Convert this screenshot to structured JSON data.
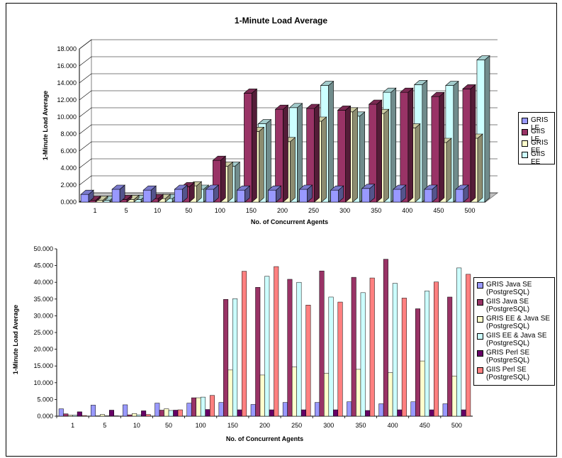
{
  "chart_data": [
    {
      "type": "bar",
      "title": "1-Minute Load Average",
      "xlabel": "No. of Concurrent Agents",
      "ylabel": "1-Minute Load Average",
      "ylim": [
        0,
        18
      ],
      "yticks": [
        "0.000",
        "2.000",
        "4.000",
        "6.000",
        "8.000",
        "10.000",
        "12.000",
        "14.000",
        "16.000",
        "18.000"
      ],
      "categories": [
        "1",
        "5",
        "10",
        "50",
        "100",
        "150",
        "200",
        "250",
        "300",
        "350",
        "400",
        "450",
        "500"
      ],
      "series": [
        {
          "name": "GRIS LE",
          "color": "#9999ff",
          "values": [
            0.9,
            1.5,
            1.4,
            1.5,
            1.5,
            1.4,
            1.4,
            1.5,
            1.4,
            1.6,
            1.5,
            1.5,
            1.5
          ]
        },
        {
          "name": "GIIS LE",
          "color": "#993366",
          "values": [
            0.2,
            0.3,
            0.4,
            1.8,
            4.9,
            12.8,
            10.9,
            11.0,
            10.8,
            11.5,
            12.9,
            12.4,
            13.3
          ]
        },
        {
          "name": "GRIS EE",
          "color": "#ffffcc",
          "values": [
            0.2,
            0.3,
            0.4,
            1.9,
            4.2,
            8.3,
            7.1,
            9.5,
            10.6,
            10.4,
            8.7,
            7.0,
            7.5
          ]
        },
        {
          "name": "GIIS EE",
          "color": "#ccffff",
          "values": [
            0.2,
            0.3,
            0.4,
            1.5,
            4.2,
            9.2,
            11.1,
            13.7,
            10.1,
            12.9,
            13.8,
            13.7,
            16.7
          ]
        }
      ],
      "legend_position": "right",
      "view": "3d"
    },
    {
      "type": "bar",
      "title": "",
      "xlabel": "No. of Concurrent Agents",
      "ylabel": "1-Minute Load Average",
      "ylim": [
        0,
        50
      ],
      "yticks": [
        "0.000",
        "5.000",
        "10.000",
        "15.000",
        "20.000",
        "25.000",
        "30.000",
        "35.000",
        "40.000",
        "45.000",
        "50.000"
      ],
      "categories": [
        "1",
        "5",
        "10",
        "50",
        "100",
        "150",
        "200",
        "250",
        "300",
        "350",
        "400",
        "450",
        "500"
      ],
      "series": [
        {
          "name": "GRIS Java SE\n(PostgreSQL)",
          "color": "#9999ff",
          "values": [
            2.2,
            3.3,
            3.4,
            3.9,
            3.9,
            4.1,
            3.5,
            4.1,
            4.1,
            4.3,
            3.7,
            4.3,
            3.7
          ]
        },
        {
          "name": "GIIS Java SE\n(PostgreSQL)",
          "color": "#993366",
          "values": [
            0.7,
            0.1,
            0.4,
            1.8,
            5.5,
            34.9,
            38.5,
            40.9,
            43.4,
            41.5,
            46.9,
            32.1,
            35.6
          ]
        },
        {
          "name": "GRIS EE & Java SE\n(PostgreSQL)",
          "color": "#ffffcc",
          "values": [
            0.3,
            0.5,
            0.8,
            2.2,
            5.5,
            13.8,
            12.3,
            14.7,
            12.8,
            14.0,
            13.0,
            16.5,
            12.0
          ]
        },
        {
          "name": "GIIS EE & Java SE\n(PostgreSQL)",
          "color": "#ccffff",
          "values": [
            0.3,
            0.1,
            0.4,
            1.7,
            5.7,
            35.1,
            41.8,
            40.0,
            35.6,
            36.9,
            39.7,
            37.4,
            44.3
          ]
        },
        {
          "name": "GRIS Perl SE\n(PostgreSQL)",
          "color": "#660066",
          "values": [
            1.3,
            1.8,
            1.6,
            1.8,
            2.0,
            1.9,
            1.9,
            1.9,
            1.9,
            1.7,
            1.9,
            1.9,
            1.9
          ]
        },
        {
          "name": "GIIS Perl SE\n(PostgreSQL)",
          "color": "#ff8080",
          "values": [
            0.2,
            0.1,
            0.5,
            1.9,
            6.2,
            43.3,
            44.7,
            33.2,
            34.1,
            41.3,
            35.3,
            40.1,
            42.4
          ]
        }
      ],
      "legend_position": "right",
      "view": "2d"
    }
  ]
}
